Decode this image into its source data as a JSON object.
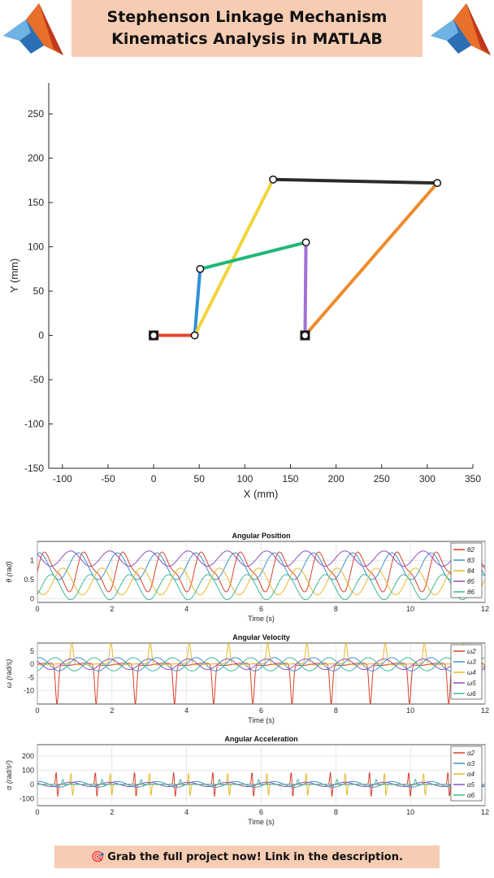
{
  "header": {
    "title_line1": "Stephenson Linkage Mechanism",
    "title_line2": "Kinematics Analysis in MATLAB",
    "logo_icon": "matlab-logo-icon"
  },
  "footer": {
    "icon": "target-icon",
    "text": "Grab the full project now! Link in the description."
  },
  "chart_data": [
    {
      "type": "scatter",
      "xlabel": "X (mm)",
      "ylabel": "Y (mm)",
      "xlim": [
        -115,
        350
      ],
      "ylim": [
        -150,
        285
      ],
      "xticks": [
        -100,
        -50,
        0,
        50,
        100,
        150,
        200,
        250,
        300,
        350
      ],
      "yticks": [
        -150,
        -100,
        -50,
        0,
        50,
        100,
        150,
        200,
        250
      ],
      "grid": false,
      "joints": [
        {
          "x": 0,
          "y": 0,
          "ground": true
        },
        {
          "x": 45,
          "y": 0,
          "ground": false
        },
        {
          "x": 51,
          "y": 75,
          "ground": false
        },
        {
          "x": 131,
          "y": 176,
          "ground": false
        },
        {
          "x": 167,
          "y": 105,
          "ground": false
        },
        {
          "x": 166,
          "y": 0,
          "ground": true
        },
        {
          "x": 311,
          "y": 172,
          "ground": false
        }
      ],
      "links": [
        {
          "from": 0,
          "to": 1,
          "color": "#e8452f"
        },
        {
          "from": 1,
          "to": 2,
          "color": "#2e8fd8"
        },
        {
          "from": 1,
          "to": 3,
          "color": "#f2d43a"
        },
        {
          "from": 2,
          "to": 4,
          "color": "#1fb77a"
        },
        {
          "from": 4,
          "to": 5,
          "color": "#a070d8"
        },
        {
          "from": 5,
          "to": 6,
          "color": "#ee8a2b"
        },
        {
          "from": 3,
          "to": 6,
          "color": "#2b2b2b"
        }
      ]
    },
    {
      "type": "line",
      "title": "Angular Position",
      "xlabel": "Time (s)",
      "ylabel": "θ (rad)",
      "xlim": [
        0,
        12
      ],
      "ylim": [
        -0.1,
        1.5
      ],
      "xticks": [
        0,
        2,
        4,
        6,
        8,
        10,
        12
      ],
      "yticks": [
        0,
        0.5,
        1
      ],
      "grid": true,
      "legend": "right",
      "period": 1.05,
      "series": [
        {
          "name": "θ2",
          "color": "#d8412a",
          "kind": "saw",
          "mean": 0.7,
          "amp": 0.75,
          "phase": 0.0
        },
        {
          "name": "θ3",
          "color": "#3a93cc",
          "kind": "sin",
          "mean": 0.85,
          "amp": 0.35,
          "phase": 0.2
        },
        {
          "name": "θ4",
          "color": "#e6b82a",
          "kind": "sin",
          "mean": 0.45,
          "amp": 0.35,
          "phase": 0.6
        },
        {
          "name": "θ5",
          "color": "#8e4fbf",
          "kind": "sin",
          "mean": 1.05,
          "amp": 0.2,
          "phase": 0.4
        },
        {
          "name": "θ6",
          "color": "#3cb89b",
          "kind": "sin",
          "mean": 0.3,
          "amp": 0.33,
          "phase": 0.9
        }
      ]
    },
    {
      "type": "line",
      "title": "Angular Velocity",
      "xlabel": "Time (s)",
      "ylabel": "ω (rad/s)",
      "xlim": [
        0,
        12
      ],
      "ylim": [
        -15,
        8
      ],
      "xticks": [
        0,
        2,
        4,
        6,
        8,
        10,
        12
      ],
      "yticks": [
        -10,
        -5,
        0,
        5
      ],
      "grid": true,
      "legend": "right",
      "period": 1.05,
      "series": [
        {
          "name": "ω2",
          "color": "#d8412a",
          "kind": "spike",
          "mean": 0,
          "amp": -15,
          "phase": 0.0
        },
        {
          "name": "ω3",
          "color": "#3a93cc",
          "kind": "sin",
          "mean": 0,
          "amp": 2.5,
          "phase": 0.2
        },
        {
          "name": "ω4",
          "color": "#e6b82a",
          "kind": "spike",
          "mean": 0,
          "amp": 8,
          "phase": 0.62
        },
        {
          "name": "ω5",
          "color": "#8e4fbf",
          "kind": "sin",
          "mean": 0,
          "amp": 2,
          "phase": 0.4
        },
        {
          "name": "ω6",
          "color": "#3cb89b",
          "kind": "sin",
          "mean": 0,
          "amp": 2.5,
          "phase": 0.8
        }
      ]
    },
    {
      "type": "line",
      "title": "Angular Acceleration",
      "xlabel": "Time (s)",
      "ylabel": "α (rad/s²)",
      "xlim": [
        0,
        12
      ],
      "ylim": [
        -150,
        280
      ],
      "xticks": [
        0,
        2,
        4,
        6,
        8,
        10,
        12
      ],
      "yticks": [
        -100,
        0,
        100,
        200
      ],
      "grid": true,
      "legend": "right",
      "period": 1.05,
      "series": [
        {
          "name": "α2",
          "color": "#d8412a",
          "kind": "dspike",
          "mean": 0,
          "amp": 240,
          "phase": 0.0
        },
        {
          "name": "α3",
          "color": "#3a93cc",
          "kind": "sin",
          "mean": 0,
          "amp": 20,
          "phase": 0.2
        },
        {
          "name": "α4",
          "color": "#e6b82a",
          "kind": "dspike",
          "mean": 0,
          "amp": 220,
          "phase": 0.62
        },
        {
          "name": "α5",
          "color": "#8e4fbf",
          "kind": "sin",
          "mean": 0,
          "amp": 15,
          "phase": 0.4
        },
        {
          "name": "α6",
          "color": "#3cb89b",
          "kind": "bump",
          "mean": 0,
          "amp": 35,
          "phase": 0.85
        }
      ]
    }
  ]
}
